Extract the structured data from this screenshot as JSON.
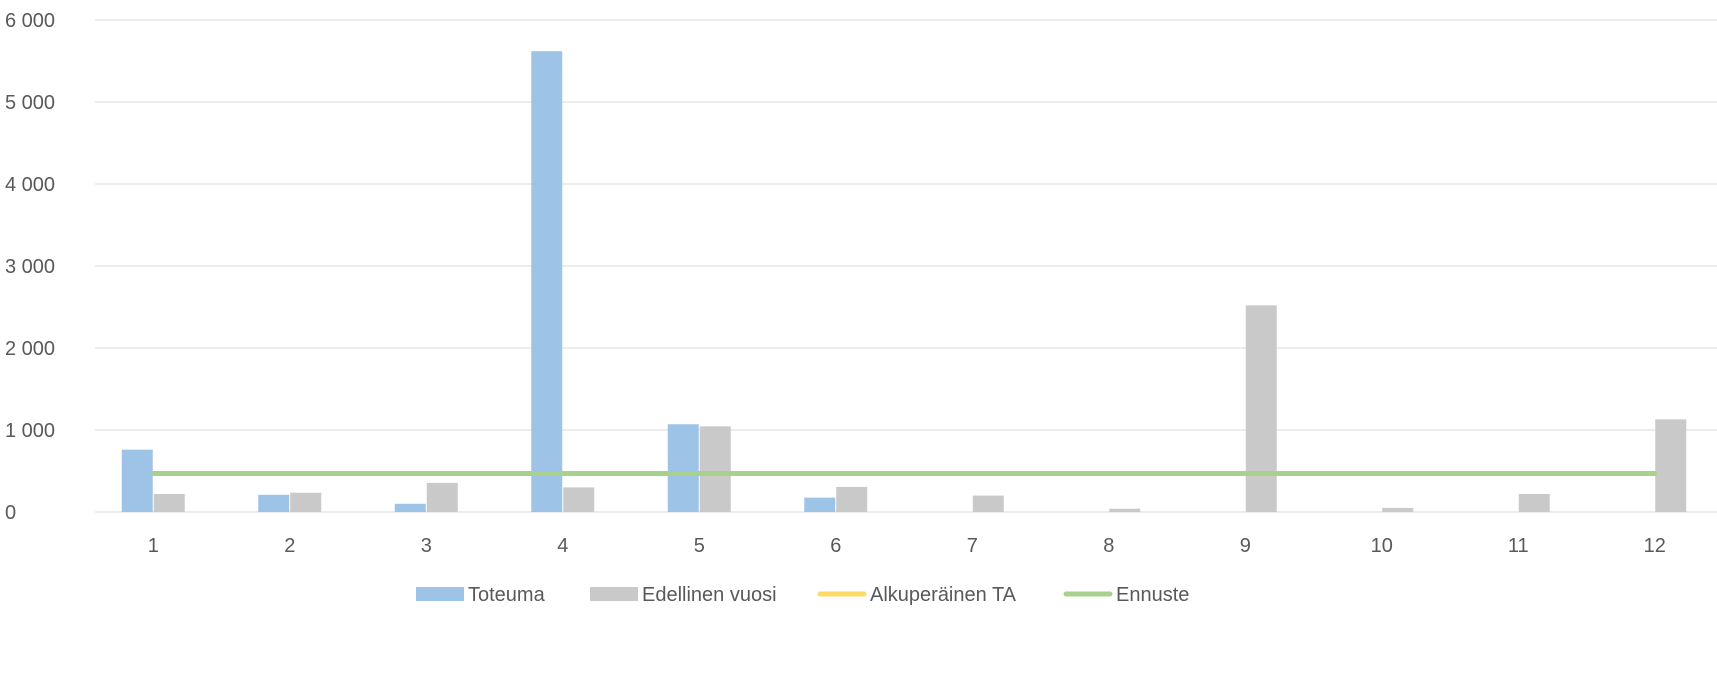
{
  "chart_data": {
    "type": "bar",
    "categories": [
      "1",
      "2",
      "3",
      "4",
      "5",
      "6",
      "7",
      "8",
      "9",
      "10",
      "11",
      "12"
    ],
    "ylim": [
      0,
      6000
    ],
    "yticks": [
      0,
      1000,
      2000,
      3000,
      4000,
      5000,
      6000
    ],
    "ytick_labels": [
      "0",
      "1 000",
      "2 000",
      "3 000",
      "4 000",
      "5 000",
      "6 000"
    ],
    "grid": true,
    "legend_position": "bottom",
    "series": [
      {
        "name": "Toteuma",
        "kind": "bar",
        "color": "#9dc3e6",
        "values": [
          760,
          210,
          100,
          5620,
          1070,
          175,
          0,
          0,
          0,
          0,
          0,
          0
        ]
      },
      {
        "name": "Edellinen vuosi",
        "kind": "bar",
        "color": "#c9c9c9",
        "values": [
          220,
          235,
          355,
          300,
          1045,
          305,
          200,
          40,
          2520,
          50,
          220,
          1130
        ]
      },
      {
        "name": "Alkuperäinen TA",
        "kind": "line",
        "color": "#ffd966",
        "values": [
          470,
          470,
          470,
          470,
          470,
          470,
          470,
          470,
          470,
          470,
          470,
          470
        ]
      },
      {
        "name": "Ennuste",
        "kind": "line",
        "color": "#a9d18e",
        "values": [
          470,
          470,
          470,
          470,
          470,
          470,
          470,
          470,
          470,
          470,
          470,
          470
        ]
      }
    ]
  }
}
